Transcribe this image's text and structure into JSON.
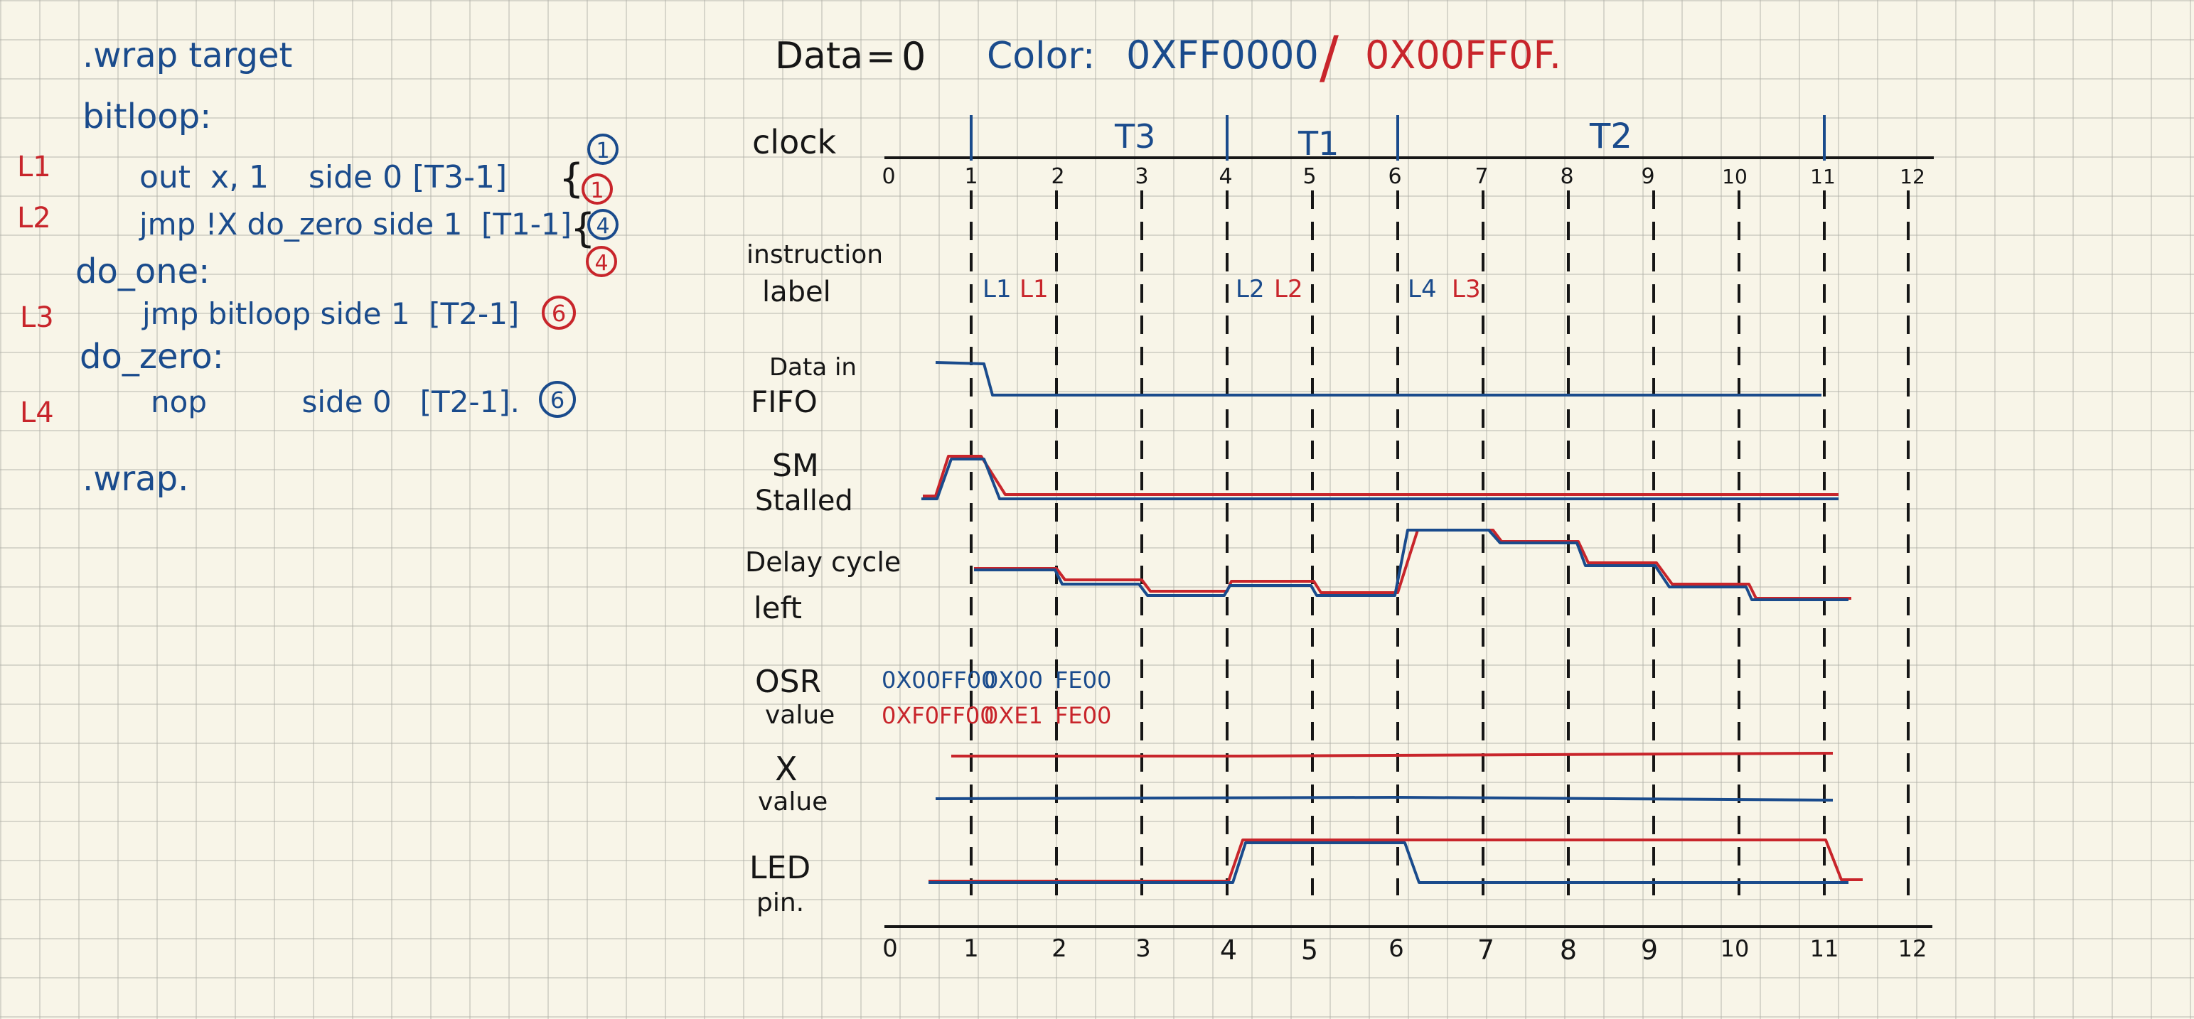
{
  "colors": {
    "blue": "#1a4b8c",
    "red": "#c8252b",
    "ink": "#161616",
    "paper": "#f8f5e8"
  },
  "header": {
    "data_label": "Data",
    "equals": "=",
    "data_value": "0",
    "color_label": "Color:",
    "color_blue": "0XFF0000",
    "slash": "/",
    "color_red": "0X00FF0F."
  },
  "program": {
    "wrap_target": ".wrap target",
    "bitloop": "bitloop:",
    "l1_code": "out  x, 1    side 0 [T3-1]",
    "l2_code": "jmp !X do_zero side 1  [T1-1]",
    "do_one": "do_one:",
    "l3_code": "jmp bitloop side 1  [T2-1]",
    "do_zero": "do_zero:",
    "l4_code": "nop          side 0   [T2-1].",
    "wrap": ".wrap.",
    "line_labels": [
      "L1",
      "L2",
      "L3",
      "L4"
    ],
    "l1_cycles": [
      "1",
      "1"
    ],
    "l2_cycles": [
      "4",
      "4"
    ],
    "l3_cycles": "6",
    "l4_cycles": "6"
  },
  "timing": {
    "signals": {
      "clock": "clock",
      "instruction_1": "instruction",
      "instruction_2": "label",
      "fifo_1": "Data in",
      "fifo_2": "FIFO",
      "stalled_1": "SM",
      "stalled_2": "Stalled",
      "delay_1": "Delay cycle",
      "delay_2": "left",
      "osr_1": "OSR",
      "osr_2": "value",
      "x_1": "X",
      "x_2": "value",
      "led_1": "LED",
      "led_2": "pin."
    },
    "periods": [
      "T3",
      "T1",
      "T2"
    ],
    "ticks": [
      "0",
      "1",
      "2",
      "3",
      "4",
      "5",
      "6",
      "7",
      "8",
      "9",
      "10",
      "11",
      "12"
    ],
    "instr_labels": {
      "l1_blue": "L1",
      "l1_red": "L1",
      "l2_blue": "L2",
      "l2_red": "L2",
      "l4_blue": "L4",
      "l3_red": "L3"
    },
    "osr": {
      "blue_a": "0X00FF00",
      "blue_b": "0X00",
      "blue_c": "FE00",
      "red_a": "0XF0FF00",
      "red_b": "0XE1",
      "red_c": "FE00"
    }
  }
}
